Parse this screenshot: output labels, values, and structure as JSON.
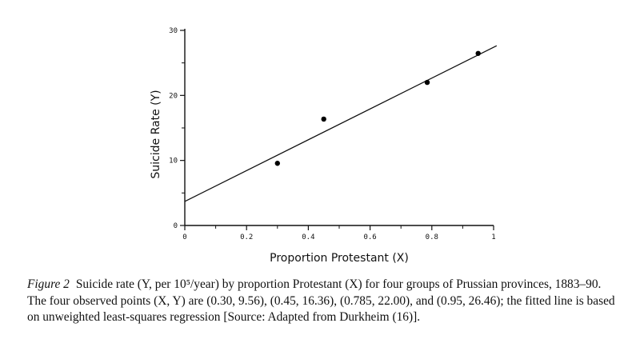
{
  "chart_data": {
    "type": "scatter",
    "xlabel": "Proportion Protestant (X)",
    "ylabel": "Suicide Rate (Y)",
    "xlim": [
      0,
      1
    ],
    "ylim": [
      0,
      30
    ],
    "x_ticks": [
      0,
      0.2,
      0.4,
      0.6,
      0.8,
      1
    ],
    "x_tick_labels": [
      "0",
      "0.2",
      "0.4",
      "0.6",
      "0.8",
      "1"
    ],
    "y_ticks": [
      0,
      10,
      20,
      30
    ],
    "y_tick_labels": [
      "0",
      "10",
      "20",
      "30"
    ],
    "points": [
      {
        "x": 0.3,
        "y": 9.56
      },
      {
        "x": 0.45,
        "y": 16.36
      },
      {
        "x": 0.785,
        "y": 22.0
      },
      {
        "x": 0.95,
        "y": 26.46
      }
    ],
    "fit_line": {
      "x": [
        0,
        1
      ],
      "y": [
        3.7,
        27.4
      ]
    },
    "grid": false,
    "legend": "none"
  },
  "caption": {
    "label": "Figure 2",
    "text": "Suicide rate (Y, per 10⁵/year) by proportion Protestant (X) for four groups of Prussian provinces, 1883–90. The four observed points (X, Y) are (0.30, 9.56), (0.45, 16.36), (0.785, 22.00), and (0.95, 26.46); the fitted line is based on unweighted least-squares regression [Source: Adapted from Durkheim (16)]."
  }
}
